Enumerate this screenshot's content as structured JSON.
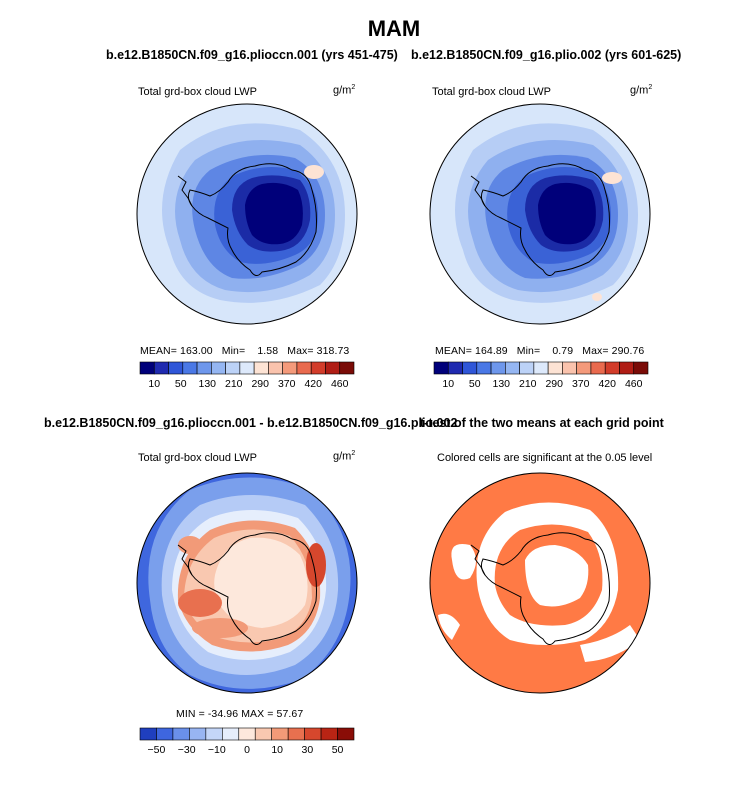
{
  "title": "MAM",
  "panels": [
    {
      "title": "b.e12.B1850CN.f09_g16.plioccn.001 (yrs 451-475)",
      "variable": "Total grd-box cloud LWP",
      "units": "g/m",
      "units_exp": "2",
      "stats": {
        "mean_label": "MEAN=",
        "mean": "163.00",
        "min_label": "Min=",
        "min": "1.58",
        "max_label": "Max=",
        "max": "318.73"
      },
      "colorbar_labels": [
        "10",
        "50",
        "130",
        "210",
        "290",
        "370",
        "420",
        "460"
      ]
    },
    {
      "title": "b.e12.B1850CN.f09_g16.plio.002 (yrs 601-625)",
      "variable": "Total grd-box cloud LWP",
      "units": "g/m",
      "units_exp": "2",
      "stats": {
        "mean_label": "MEAN=",
        "mean": "164.89",
        "min_label": "Min=",
        "min": "0.79",
        "max_label": "Max=",
        "max": "290.76"
      },
      "colorbar_labels": [
        "10",
        "50",
        "130",
        "210",
        "290",
        "370",
        "420",
        "460"
      ]
    },
    {
      "title": "b.e12.B1850CN.f09_g16.plioccn.001 - b.e12.B1850CN.f09_g16.plio.002",
      "variable": "Total grd-box cloud LWP",
      "units": "g/m",
      "units_exp": "2",
      "stats_text": "MIN = -34.96 MAX = 57.67",
      "colorbar_labels": [
        "−50",
        "−30",
        "−10",
        "0",
        "10",
        "30",
        "50"
      ]
    },
    {
      "title": "t-test of the two means at each grid point",
      "subtitle": "Colored cells are significant at the 0.05 level"
    }
  ],
  "colors": {
    "abs_scale": [
      "#00007a",
      "#1f2ab0",
      "#2f56d8",
      "#4a78e6",
      "#6e97ec",
      "#95b6f2",
      "#bcd2f7",
      "#dde9fb",
      "#fde3d4",
      "#fac3ad",
      "#f49a7b",
      "#e96a4e",
      "#d23c2a",
      "#b01d15",
      "#7a0b07"
    ],
    "diff_scale": [
      "#1f3fbf",
      "#3e66df",
      "#6a90ea",
      "#98b5f2",
      "#c4d6f8",
      "#e6eefc",
      "#fde8dc",
      "#f9c8b0",
      "#f29a78",
      "#e8704f",
      "#d6472d",
      "#b92414",
      "#8a0d07"
    ],
    "significant": "#ff7a45"
  }
}
